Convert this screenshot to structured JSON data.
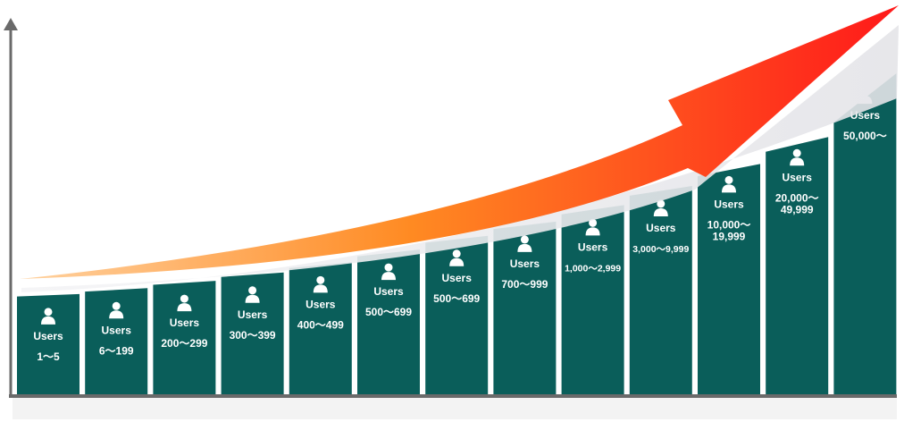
{
  "chart_data": {
    "type": "bar",
    "title": "",
    "xlabel": "",
    "ylabel": "",
    "grid": false,
    "user_label": "Users",
    "categories": [
      "1～5",
      "6～199",
      "200～299",
      "300～399",
      "400～499",
      "500～699",
      "500～699",
      "700～999",
      "1,000～2,999",
      "3,000～9,999",
      "10,000～\n19,999",
      "20,000～\n49,999",
      "50,000～"
    ],
    "values": [
      1,
      1.05,
      1.12,
      1.2,
      1.29,
      1.41,
      1.55,
      1.69,
      1.84,
      2.03,
      2.23,
      2.48,
      2.78
    ],
    "ylim": [
      0,
      3.3
    ],
    "icons": [
      "user-icon",
      "trend-arrow"
    ],
    "colors": {
      "bar_light": "#2e9e78",
      "bar_dark": "#0a5e5a",
      "arrow_start": "#ff8a22",
      "arrow_end": "#ff1a1a",
      "axis": "#6a6a6a",
      "label": "#ffffff"
    }
  }
}
